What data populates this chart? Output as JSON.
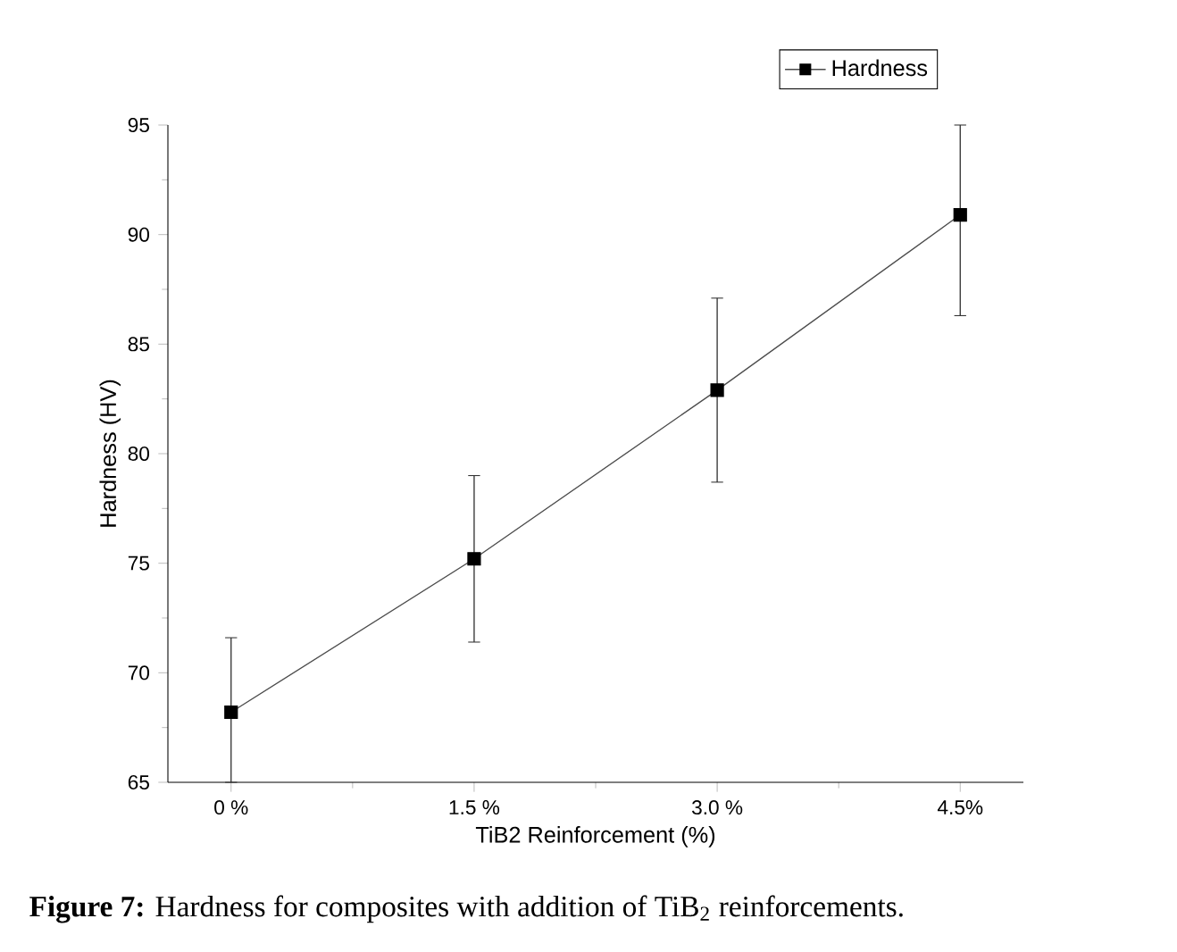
{
  "chart_data": {
    "type": "line",
    "xlabel": "TiB2 Reinforcement (%)",
    "ylabel": "Hardness (HV)",
    "categories": [
      "0 %",
      "1.5 %",
      "3.0 %",
      "4.5%"
    ],
    "series": [
      {
        "name": "Hardness",
        "color": "#000000",
        "values": [
          68.2,
          75.2,
          82.9,
          90.9
        ],
        "errors": [
          [
            65.0,
            71.6
          ],
          3.8,
          4.2,
          [
            86.3,
            95.0
          ]
        ]
      }
    ],
    "ylim": [
      65,
      95
    ],
    "yticks": [
      65,
      70,
      75,
      80,
      85,
      90,
      95
    ],
    "legend": "top right",
    "marker": "square",
    "line_style": "solid",
    "annotations": [
      "**Figure 7:** Hardness for composites with addition of TiB$_{2}$ reinforcements."
    ]
  }
}
